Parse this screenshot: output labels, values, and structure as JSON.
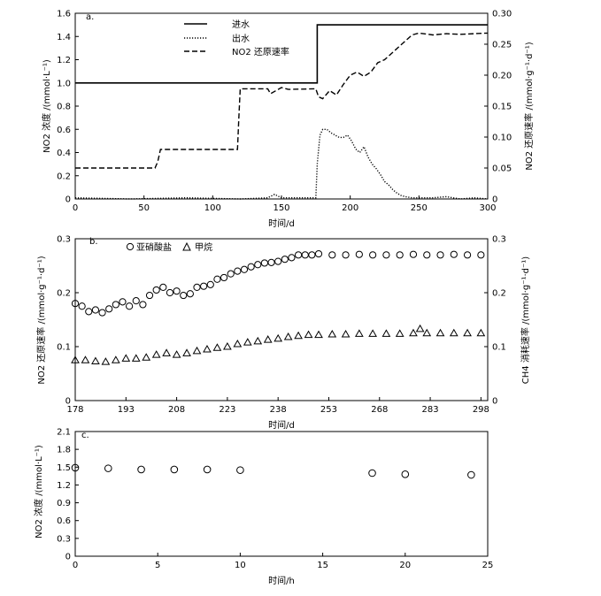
{
  "chart_data": [
    {
      "panel": "a.",
      "type": "line",
      "xlabel": "时间/d",
      "ylabel": "NO2 浓度 /(mmol·L⁻¹)",
      "y2label": "NO2 还原速率 /(mmol·g⁻¹·d⁻¹)",
      "xlim": [
        0,
        300
      ],
      "ylim": [
        0,
        1.6
      ],
      "y2lim": [
        0,
        0.3
      ],
      "xticks": [
        "0",
        "50",
        "100",
        "150",
        "200",
        "250",
        "300"
      ],
      "yticks": [
        "0",
        "0.2",
        "0.4",
        "0.6",
        "0.8",
        "1.0",
        "1.2",
        "1.4",
        "1.6"
      ],
      "y2ticks": [
        "0",
        "0.05",
        "0.10",
        "0.15",
        "0.20",
        "0.25",
        "0.30"
      ],
      "legend_position": "top-center",
      "series": [
        {
          "name": "进水",
          "axis": "left",
          "style": "solid",
          "x": [
            0,
            176,
            176,
            300
          ],
          "y": [
            1.0,
            1.0,
            1.5,
            1.5
          ]
        },
        {
          "name": "出水",
          "axis": "left",
          "style": "dotted",
          "x": [
            0,
            40,
            80,
            120,
            140,
            145,
            150,
            175,
            176,
            178,
            180,
            183,
            186,
            189,
            192,
            195,
            198,
            201,
            204,
            207,
            210,
            213,
            216,
            219,
            222,
            225,
            228,
            231,
            234,
            237,
            240,
            245,
            250,
            260,
            270,
            280,
            290,
            300
          ],
          "y": [
            0.01,
            0.0,
            0.01,
            0.0,
            0.01,
            0.04,
            0.01,
            0.01,
            0.3,
            0.55,
            0.6,
            0.6,
            0.57,
            0.55,
            0.53,
            0.53,
            0.55,
            0.5,
            0.43,
            0.4,
            0.45,
            0.36,
            0.3,
            0.26,
            0.21,
            0.15,
            0.12,
            0.08,
            0.05,
            0.03,
            0.02,
            0.01,
            0.01,
            0.01,
            0.02,
            0.0,
            0.01,
            0.0
          ]
        },
        {
          "name": "NO2 还原速率",
          "axis": "right",
          "style": "dashed",
          "x": [
            0,
            58,
            60,
            62,
            118,
            119,
            120,
            140,
            142,
            150,
            155,
            175,
            177,
            180,
            185,
            190,
            195,
            200,
            205,
            210,
            215,
            220,
            225,
            230,
            235,
            240,
            245,
            250,
            260,
            270,
            280,
            290,
            300
          ],
          "y": [
            0.05,
            0.05,
            0.06,
            0.08,
            0.08,
            0.13,
            0.178,
            0.178,
            0.17,
            0.18,
            0.177,
            0.178,
            0.165,
            0.162,
            0.175,
            0.168,
            0.185,
            0.2,
            0.205,
            0.198,
            0.205,
            0.22,
            0.225,
            0.235,
            0.245,
            0.255,
            0.265,
            0.268,
            0.265,
            0.267,
            0.266,
            0.267,
            0.268
          ]
        }
      ]
    },
    {
      "panel": "b.",
      "type": "scatter",
      "xlabel": "时间/d",
      "ylabel": "NO2 还原速率 /(mmol·g⁻¹·d⁻¹)",
      "y2label": "CH4 消耗速率 /(mmol·g⁻¹·d⁻¹)",
      "xlim": [
        178,
        300
      ],
      "ylim": [
        0,
        0.3
      ],
      "y2lim": [
        0,
        0.3
      ],
      "xticks": [
        "178",
        "193",
        "208",
        "223",
        "238",
        "253",
        "268",
        "283",
        "298"
      ],
      "yticks": [
        "0",
        "0.1",
        "0.2",
        "0.3"
      ],
      "y2ticks": [
        "0",
        "0.1",
        "0.2",
        "0.3"
      ],
      "legend_position": "top-left",
      "series": [
        {
          "name": "亚硝酸盐",
          "marker": "circle",
          "x": [
            178,
            180,
            182,
            184,
            186,
            188,
            190,
            192,
            194,
            196,
            198,
            200,
            202,
            204,
            206,
            208,
            210,
            212,
            214,
            216,
            218,
            220,
            222,
            224,
            226,
            228,
            230,
            232,
            234,
            236,
            238,
            240,
            242,
            244,
            246,
            248,
            250,
            254,
            258,
            262,
            266,
            270,
            274,
            278,
            282,
            286,
            290,
            294,
            298
          ],
          "y": [
            0.18,
            0.175,
            0.165,
            0.168,
            0.163,
            0.17,
            0.178,
            0.183,
            0.175,
            0.185,
            0.178,
            0.195,
            0.205,
            0.21,
            0.2,
            0.203,
            0.195,
            0.198,
            0.21,
            0.212,
            0.215,
            0.225,
            0.228,
            0.235,
            0.24,
            0.243,
            0.248,
            0.252,
            0.255,
            0.256,
            0.258,
            0.262,
            0.265,
            0.27,
            0.27,
            0.27,
            0.272,
            0.27,
            0.27,
            0.271,
            0.27,
            0.27,
            0.27,
            0.271,
            0.27,
            0.27,
            0.271,
            0.27,
            0.27
          ]
        },
        {
          "name": "甲烷",
          "marker": "triangle",
          "x": [
            178,
            181,
            184,
            187,
            190,
            193,
            196,
            199,
            202,
            205,
            208,
            211,
            214,
            217,
            220,
            223,
            226,
            229,
            232,
            235,
            238,
            241,
            244,
            247,
            250,
            254,
            258,
            262,
            266,
            270,
            274,
            278,
            280,
            282,
            286,
            290,
            294,
            298
          ],
          "y": [
            0.075,
            0.075,
            0.073,
            0.072,
            0.075,
            0.078,
            0.078,
            0.08,
            0.085,
            0.088,
            0.085,
            0.088,
            0.092,
            0.095,
            0.098,
            0.1,
            0.105,
            0.108,
            0.11,
            0.113,
            0.115,
            0.118,
            0.12,
            0.122,
            0.122,
            0.123,
            0.123,
            0.124,
            0.124,
            0.124,
            0.124,
            0.125,
            0.133,
            0.125,
            0.125,
            0.125,
            0.125,
            0.125
          ]
        }
      ]
    },
    {
      "panel": "c.",
      "type": "scatter",
      "xlabel": "时间/h",
      "ylabel": "NO2 浓度 /(mmol·L⁻¹)",
      "xlim": [
        0,
        25
      ],
      "ylim": [
        0,
        2.1
      ],
      "xticks": [
        "0",
        "5",
        "10",
        "15",
        "20",
        "25"
      ],
      "yticks": [
        "0",
        "0.3",
        "0.6",
        "0.9",
        "1.2",
        "1.5",
        "1.8",
        "2.1"
      ],
      "series": [
        {
          "marker": "circle",
          "x": [
            0,
            2,
            4,
            6,
            8,
            10,
            18,
            20,
            24
          ],
          "y": [
            1.49,
            1.48,
            1.46,
            1.46,
            1.46,
            1.45,
            1.4,
            1.38,
            1.37
          ]
        }
      ]
    }
  ]
}
